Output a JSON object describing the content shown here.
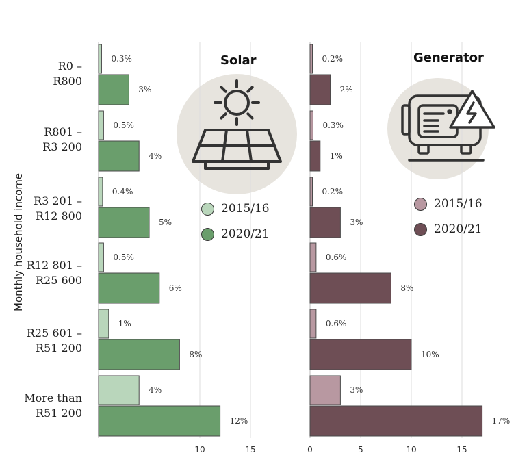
{
  "chart_data": [
    {
      "type": "bar",
      "title": "Solar",
      "ylabel": "Monthly household income",
      "categories": [
        "R0 – R800",
        "R801 – R3 200",
        "R3 201 – R12 800",
        "R12 801 – R25 600",
        "R25 601 – R51 200",
        "More than R51 200"
      ],
      "series": [
        {
          "name": "2015/16",
          "values": [
            0.3,
            0.5,
            0.4,
            0.5,
            1,
            4
          ],
          "labels": [
            "0.3%",
            "0.5%",
            "0.4%",
            "0.5%",
            "1%",
            "4%"
          ],
          "color": "#b9d6bb"
        },
        {
          "name": "2020/21",
          "values": [
            3,
            4,
            5,
            6,
            8,
            12
          ],
          "labels": [
            "3%",
            "4%",
            "5%",
            "6%",
            "8%",
            "12%"
          ],
          "color": "#6a9e6c"
        }
      ],
      "xticks": [
        "10",
        "15"
      ],
      "xlim": [
        0,
        15
      ],
      "legend": "right",
      "grid": true
    },
    {
      "type": "bar",
      "title": "Generator",
      "categories": [
        "R0 – R800",
        "R801 – R3 200",
        "R3 201 – R12 800",
        "R12 801 – R25 600",
        "R25 601 – R51 200",
        "More than R51 200"
      ],
      "series": [
        {
          "name": "2015/16",
          "values": [
            0.2,
            0.3,
            0.2,
            0.6,
            0.6,
            3
          ],
          "labels": [
            "0.2%",
            "0.3%",
            "0.2%",
            "0.6%",
            "0.6%",
            "3%"
          ],
          "color": "#b898a1"
        },
        {
          "name": "2020/21",
          "values": [
            2,
            1,
            3,
            8,
            10,
            17
          ],
          "labels": [
            "2%",
            "1%",
            "3%",
            "8%",
            "10%",
            "17%"
          ],
          "color": "#6e4e55"
        }
      ],
      "xticks": [
        "0",
        "5",
        "10",
        "15"
      ],
      "xlim": [
        0,
        20
      ],
      "legend": "right",
      "grid": true
    }
  ],
  "row_labels": [
    {
      "line1": "R0 –",
      "line2": "R800"
    },
    {
      "line1": "R801 –",
      "line2": "R3 200"
    },
    {
      "line1": "R3 201 –",
      "line2": "R12 800"
    },
    {
      "line1": "R12 801 –",
      "line2": "R25 600"
    },
    {
      "line1": "R25 601 –",
      "line2": "R51 200"
    },
    {
      "line1": "More than",
      "line2": "R51 200"
    }
  ],
  "colors": {
    "circle_bg": "#e7e4de",
    "icon": "#333333",
    "grid": "#dddddd"
  },
  "icons": {
    "solar": "solar-panel-sun-icon",
    "generator": "generator-warning-icon"
  }
}
